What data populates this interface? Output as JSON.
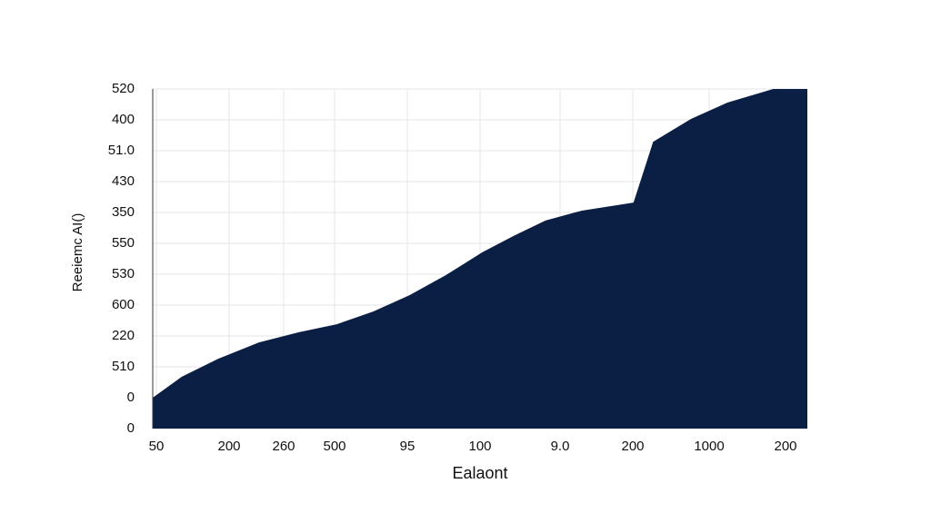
{
  "chart_data": {
    "type": "area",
    "y_label": "Reeiemc AI()",
    "x_label": "Ealaont",
    "color": "#0b1f45",
    "grid": true,
    "xlim": [
      0,
      9
    ],
    "ylim": [
      0,
      11
    ],
    "xticks": [
      {
        "value": 0.05,
        "label": "50"
      },
      {
        "value": 1.05,
        "label": "200"
      },
      {
        "value": 1.8,
        "label": "260"
      },
      {
        "value": 2.5,
        "label": "500"
      },
      {
        "value": 3.5,
        "label": "95"
      },
      {
        "value": 4.5,
        "label": "100"
      },
      {
        "value": 5.6,
        "label": "9.0"
      },
      {
        "value": 6.6,
        "label": "200"
      },
      {
        "value": 7.65,
        "label": "1000"
      },
      {
        "value": 8.7,
        "label": "200"
      }
    ],
    "yticks": [
      {
        "value": 0,
        "label": "0"
      },
      {
        "value": 1,
        "label": "0"
      },
      {
        "value": 2,
        "label": "510"
      },
      {
        "value": 3,
        "label": "220"
      },
      {
        "value": 4,
        "label": "600"
      },
      {
        "value": 5,
        "label": "530"
      },
      {
        "value": 6,
        "label": "550"
      },
      {
        "value": 7,
        "label": "350"
      },
      {
        "value": 8,
        "label": "430"
      },
      {
        "value": 9,
        "label": "51.0"
      },
      {
        "value": 10,
        "label": "400"
      },
      {
        "value": 11,
        "label": "520"
      }
    ],
    "x": [
      0,
      0.4,
      0.9,
      1.46,
      2.01,
      2.53,
      3.03,
      3.53,
      4.03,
      4.53,
      4.96,
      5.4,
      5.9,
      6.61,
      6.88,
      7.4,
      7.9,
      8.53,
      9
    ],
    "values": [
      1.0,
      1.68,
      2.26,
      2.79,
      3.12,
      3.38,
      3.79,
      4.32,
      4.97,
      5.71,
      6.24,
      6.74,
      7.06,
      7.32,
      9.29,
      10.03,
      10.56,
      11,
      11
    ]
  }
}
